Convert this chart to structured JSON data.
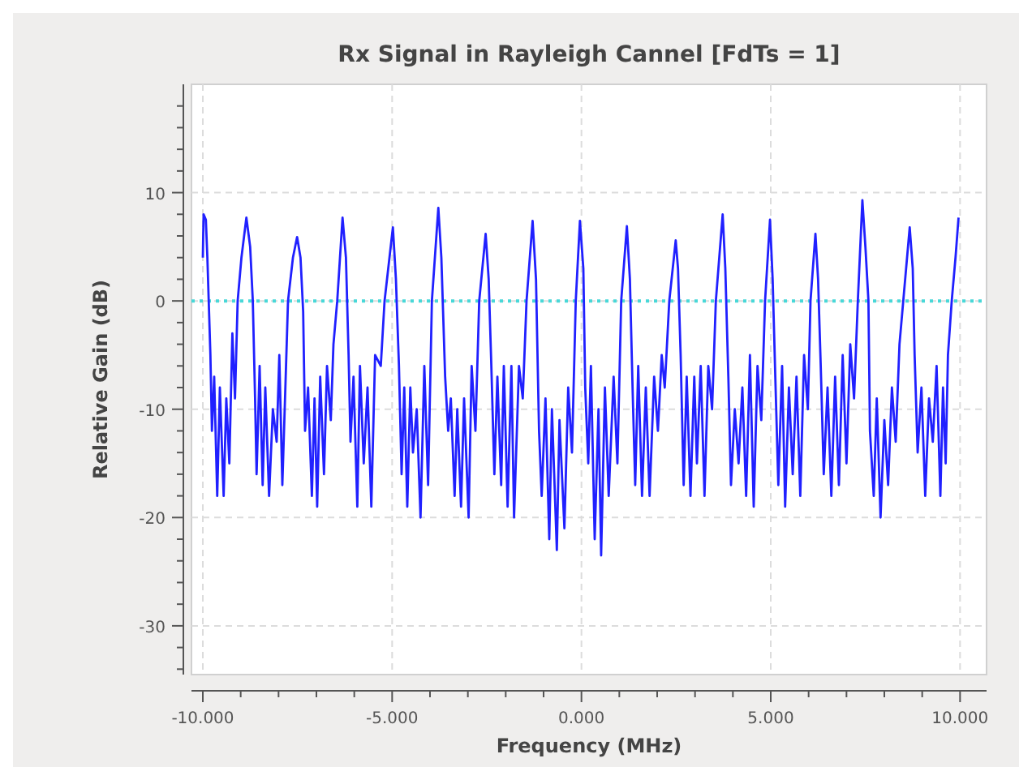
{
  "chart_data": {
    "type": "line",
    "title": "Rx Signal in Rayleigh Cannel [FdTs = 1]",
    "xlabel": "Frequency (MHz)",
    "ylabel": "Relative Gain (dB)",
    "xlim": [
      -10.3,
      10.7
    ],
    "ylim": [
      -34.5,
      20
    ],
    "xticks": [
      {
        "value": -10,
        "label": "-10.000"
      },
      {
        "value": -9,
        "label": null
      },
      {
        "value": -8,
        "label": null
      },
      {
        "value": -7,
        "label": null
      },
      {
        "value": -6,
        "label": null
      },
      {
        "value": -5,
        "label": "-5.000"
      },
      {
        "value": -4,
        "label": null
      },
      {
        "value": -3,
        "label": null
      },
      {
        "value": -2,
        "label": null
      },
      {
        "value": -1,
        "label": null
      },
      {
        "value": 0,
        "label": "0.000"
      },
      {
        "value": 1,
        "label": null
      },
      {
        "value": 2,
        "label": null
      },
      {
        "value": 3,
        "label": null
      },
      {
        "value": 4,
        "label": null
      },
      {
        "value": 5,
        "label": "5.000"
      },
      {
        "value": 6,
        "label": null
      },
      {
        "value": 7,
        "label": null
      },
      {
        "value": 8,
        "label": null
      },
      {
        "value": 9,
        "label": null
      },
      {
        "value": 10,
        "label": "10.000"
      }
    ],
    "yticks": [
      {
        "value": -34,
        "label": null
      },
      {
        "value": -32,
        "label": null
      },
      -30,
      {
        "value": -28,
        "label": null
      },
      {
        "value": -26,
        "label": null
      },
      {
        "value": -24,
        "label": null
      },
      {
        "value": -22,
        "label": null
      },
      -20,
      {
        "value": -18,
        "label": null
      },
      {
        "value": -16,
        "label": null
      },
      {
        "value": -14,
        "label": null
      },
      {
        "value": -12,
        "label": null
      },
      -10,
      {
        "value": -8,
        "label": null
      },
      {
        "value": -6,
        "label": null
      },
      {
        "value": -4,
        "label": null
      },
      {
        "value": -2,
        "label": null
      },
      0,
      {
        "value": 2,
        "label": null
      },
      {
        "value": 4,
        "label": null
      },
      {
        "value": 6,
        "label": null
      },
      {
        "value": 8,
        "label": null
      },
      10,
      {
        "value": 12,
        "label": null
      },
      {
        "value": 14,
        "label": null
      },
      {
        "value": 16,
        "label": null
      },
      {
        "value": 18,
        "label": null
      }
    ],
    "grid": true,
    "line_style": "solid",
    "marker": "none",
    "ref_lines": [
      {
        "axis": "y",
        "value": 0,
        "color": "#48d8d8",
        "line_style": "dotted"
      }
    ],
    "series": [
      {
        "color": "#2020ff",
        "x": [
          -10,
          -9.98,
          -9.92,
          -9.88,
          -9.8,
          -9.76,
          -9.7,
          -9.62,
          -9.55,
          -9.45,
          -9.38,
          -9.3,
          -9.22,
          -9.15,
          -9.08,
          -8.98,
          -8.85,
          -8.75,
          -8.68,
          -8.62,
          -8.58,
          -8.5,
          -8.42,
          -8.35,
          -8.25,
          -8.15,
          -8.05,
          -7.98,
          -7.9,
          -7.82,
          -7.75,
          -7.62,
          -7.51,
          -7.42,
          -7.35,
          -7.3,
          -7.22,
          -7.12,
          -7.05,
          -6.98,
          -6.9,
          -6.8,
          -6.72,
          -6.62,
          -6.55,
          -6.45,
          -6.31,
          -6.22,
          -6.15,
          -6.1,
          -6.02,
          -5.92,
          -5.85,
          -5.75,
          -5.65,
          -5.55,
          -5.45,
          -5.3,
          -5.2,
          -4.98,
          -4.9,
          -4.82,
          -4.75,
          -4.68,
          -4.6,
          -4.52,
          -4.45,
          -4.35,
          -4.25,
          -4.15,
          -4.05,
          -3.95,
          -3.78,
          -3.7,
          -3.6,
          -3.52,
          -3.45,
          -3.35,
          -3.28,
          -3.18,
          -3.1,
          -2.98,
          -2.9,
          -2.8,
          -2.7,
          -2.53,
          -2.45,
          -2.38,
          -2.3,
          -2.22,
          -2.12,
          -2.05,
          -1.95,
          -1.85,
          -1.78,
          -1.65,
          -1.55,
          -1.45,
          -1.29,
          -1.2,
          -1.12,
          -1.05,
          -0.95,
          -0.85,
          -0.78,
          -0.65,
          -0.58,
          -0.45,
          -0.35,
          -0.25,
          -0.15,
          -0.04,
          0.05,
          0.1,
          0.18,
          0.25,
          0.35,
          0.45,
          0.52,
          0.62,
          0.72,
          0.85,
          0.95,
          1.05,
          1.2,
          1.28,
          1.35,
          1.42,
          1.5,
          1.6,
          1.7,
          1.8,
          1.92,
          2.02,
          2.12,
          2.2,
          2.32,
          2.49,
          2.55,
          2.62,
          2.7,
          2.78,
          2.88,
          2.98,
          3.05,
          3.15,
          3.25,
          3.35,
          3.45,
          3.55,
          3.73,
          3.8,
          3.88,
          3.95,
          4.05,
          4.15,
          4.25,
          4.35,
          4.45,
          4.55,
          4.65,
          4.75,
          4.85,
          4.98,
          5.05,
          5.12,
          5.2,
          5.3,
          5.38,
          5.48,
          5.58,
          5.68,
          5.78,
          5.88,
          5.98,
          6.05,
          6.18,
          6.25,
          6.32,
          6.4,
          6.5,
          6.6,
          6.7,
          6.8,
          6.9,
          7.0,
          7.1,
          7.2,
          7.3,
          7.42,
          7.5,
          7.58,
          7.62,
          7.72,
          7.8,
          7.9,
          8.0,
          8.1,
          8.2,
          8.3,
          8.4,
          8.5,
          8.67,
          8.75,
          8.8,
          8.88,
          8.98,
          9.08,
          9.18,
          9.28,
          9.38,
          9.48,
          9.55,
          9.62,
          9.68,
          9.78,
          9.88,
          9.96
        ],
        "values": [
          4,
          8,
          7.5,
          4,
          -5,
          -12,
          -7,
          -18,
          -8,
          -18,
          -9,
          -15,
          -3,
          -9,
          0,
          4,
          7.7,
          5,
          0,
          -9,
          -16,
          -6,
          -17,
          -8,
          -18,
          -10,
          -13,
          -5,
          -17,
          -8,
          0,
          4,
          5.9,
          4,
          -1,
          -12,
          -8,
          -18,
          -9,
          -19,
          -7,
          -16,
          -6,
          -11,
          -4,
          0,
          7.7,
          4,
          -5,
          -13,
          -7,
          -19,
          -6,
          -15,
          -8,
          -19,
          -5,
          -6,
          0,
          6.8,
          2,
          -6,
          -16,
          -8,
          -19,
          -8,
          -14,
          -10,
          -20,
          -6,
          -17,
          0,
          8.6,
          4,
          -7,
          -12,
          -9,
          -18,
          -10,
          -19,
          -9,
          -20,
          -6,
          -12,
          0,
          6.2,
          2,
          -6,
          -16,
          -7,
          -17,
          -6,
          -19,
          -6,
          -20,
          -6,
          -9,
          0,
          7.4,
          2,
          -12,
          -18,
          -9,
          -22,
          -10,
          -23,
          -11,
          -21,
          -8,
          -14,
          0,
          7.4,
          3,
          -8,
          -15,
          -6,
          -22,
          -10,
          -23.5,
          -8,
          -18,
          -7,
          -15,
          0,
          6.9,
          2,
          -8,
          -17,
          -6,
          -18,
          -8,
          -18,
          -7,
          -12,
          -5,
          -8,
          0,
          5.6,
          3,
          -5,
          -17,
          -7,
          -18,
          -7,
          -15,
          -6,
          -18,
          -6,
          -10,
          0,
          8,
          3,
          -7,
          -17,
          -10,
          -15,
          -8,
          -18,
          -5,
          -19,
          -6,
          -11,
          0,
          7.5,
          2,
          -7,
          -17,
          -6,
          -19,
          -8,
          -16,
          -7,
          -18,
          -5,
          -10,
          0,
          6.2,
          2,
          -6,
          -16,
          -8,
          -18,
          -7,
          -17,
          -5,
          -15,
          -4,
          -9,
          0,
          9.3,
          5,
          0,
          -12,
          -18,
          -9,
          -20,
          -11,
          -17,
          -8,
          -13,
          -4,
          0,
          6.8,
          3,
          -5,
          -14,
          -8,
          -18,
          -9,
          -13,
          -6,
          -18,
          -8,
          -15,
          -5,
          0,
          4,
          7.7
        ]
      }
    ]
  }
}
